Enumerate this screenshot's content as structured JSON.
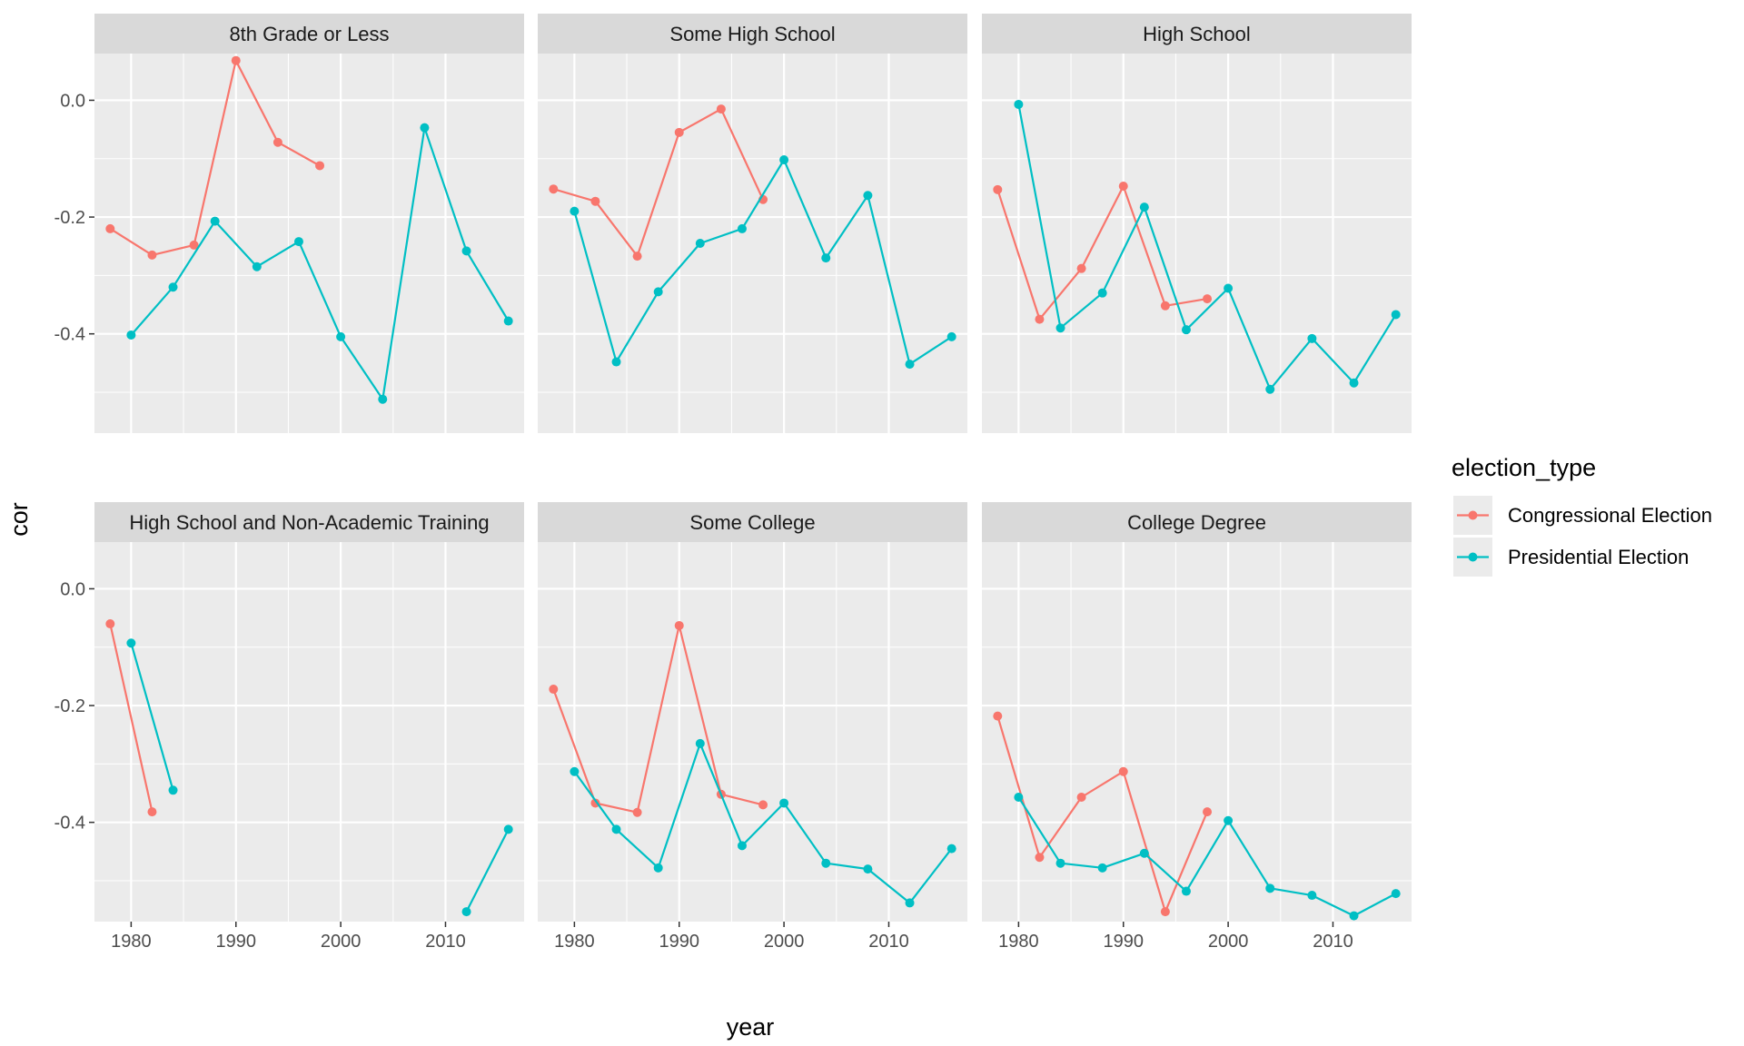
{
  "chart_data": {
    "type": "line",
    "facet_variable": "education",
    "xlabel": "year",
    "ylabel": "cor",
    "x_ticks": [
      1980,
      1990,
      2000,
      2010
    ],
    "y_ticks": [
      "0.0",
      "-0.2",
      "-0.4"
    ],
    "y_tick_values": [
      0.0,
      -0.2,
      -0.4
    ],
    "xlim": [
      1976.5,
      2017.5
    ],
    "ylim": [
      -0.57,
      0.08
    ],
    "grid": true,
    "legend": {
      "title": "election_type",
      "position": "right",
      "entries": [
        "Congressional Election",
        "Presidential Election"
      ]
    },
    "colors": {
      "Congressional Election": "#F8766D",
      "Presidential Election": "#00BFC4"
    },
    "panels": [
      {
        "title": "8th Grade or Less",
        "series": [
          {
            "name": "Congressional Election",
            "x": [
              1978,
              1982,
              1986,
              1990,
              1994,
              1998
            ],
            "y": [
              -0.22,
              -0.265,
              -0.248,
              0.068,
              -0.072,
              -0.112
            ]
          },
          {
            "name": "Presidential Election",
            "x": [
              1980,
              1984,
              1988,
              1992,
              1996,
              2000,
              2004,
              2008,
              2012,
              2016
            ],
            "y": [
              -0.402,
              -0.32,
              -0.207,
              -0.285,
              -0.242,
              -0.405,
              -0.512,
              -0.047,
              -0.258,
              -0.378
            ]
          }
        ]
      },
      {
        "title": "Some High School",
        "series": [
          {
            "name": "Congressional Election",
            "x": [
              1978,
              1982,
              1986,
              1990,
              1994,
              1998
            ],
            "y": [
              -0.152,
              -0.173,
              -0.267,
              -0.055,
              -0.015,
              -0.17
            ]
          },
          {
            "name": "Presidential Election",
            "x": [
              1980,
              1984,
              1988,
              1992,
              1996,
              2000,
              2004,
              2008,
              2012,
              2016
            ],
            "y": [
              -0.19,
              -0.448,
              -0.328,
              -0.245,
              -0.22,
              -0.102,
              -0.27,
              -0.163,
              -0.452,
              -0.405
            ]
          }
        ]
      },
      {
        "title": "High School",
        "series": [
          {
            "name": "Congressional Election",
            "x": [
              1978,
              1982,
              1986,
              1990,
              1994,
              1998
            ],
            "y": [
              -0.153,
              -0.375,
              -0.288,
              -0.147,
              -0.352,
              -0.34
            ]
          },
          {
            "name": "Presidential Election",
            "x": [
              1980,
              1984,
              1988,
              1992,
              1996,
              2000,
              2004,
              2008,
              2012,
              2016
            ],
            "y": [
              -0.007,
              -0.39,
              -0.33,
              -0.183,
              -0.393,
              -0.322,
              -0.495,
              -0.408,
              -0.484,
              -0.367
            ]
          }
        ]
      },
      {
        "title": "High School and Non-Academic Training",
        "series": [
          {
            "name": "Congressional Election",
            "x": [
              1978,
              1982
            ],
            "y": [
              -0.06,
              -0.382
            ]
          },
          {
            "name": "Presidential Election",
            "x": [
              1980,
              1984,
              1988,
              1992,
              1996,
              2000,
              2004,
              2008,
              2012,
              2016
            ],
            "y": [
              -0.093,
              -0.345,
              null,
              null,
              null,
              null,
              null,
              null,
              -0.553,
              -0.412
            ]
          }
        ]
      },
      {
        "title": "Some College",
        "series": [
          {
            "name": "Congressional Election",
            "x": [
              1978,
              1982,
              1986,
              1990,
              1994,
              1998
            ],
            "y": [
              -0.172,
              -0.367,
              -0.383,
              -0.063,
              -0.352,
              -0.37
            ]
          },
          {
            "name": "Presidential Election",
            "x": [
              1980,
              1984,
              1988,
              1992,
              1996,
              2000,
              2004,
              2008,
              2012,
              2016
            ],
            "y": [
              -0.313,
              -0.412,
              -0.478,
              -0.265,
              -0.44,
              -0.367,
              -0.47,
              -0.48,
              -0.538,
              -0.445
            ]
          }
        ]
      },
      {
        "title": "College Degree",
        "series": [
          {
            "name": "Congressional Election",
            "x": [
              1978,
              1982,
              1986,
              1990,
              1994,
              1998
            ],
            "y": [
              -0.218,
              -0.46,
              -0.357,
              -0.313,
              -0.553,
              -0.382
            ]
          },
          {
            "name": "Presidential Election",
            "x": [
              1980,
              1984,
              1988,
              1992,
              1996,
              2000,
              2004,
              2008,
              2012,
              2016
            ],
            "y": [
              -0.357,
              -0.47,
              -0.478,
              -0.453,
              -0.518,
              -0.397,
              -0.513,
              -0.525,
              -0.56,
              -0.522
            ]
          }
        ]
      }
    ]
  }
}
